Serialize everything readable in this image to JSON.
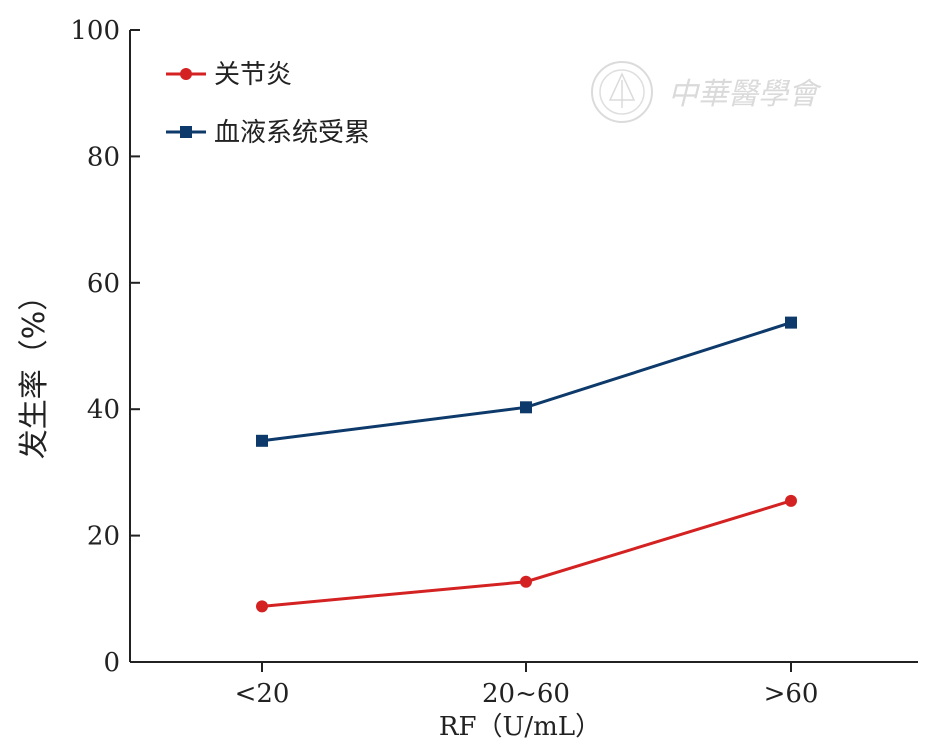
{
  "chart_data": {
    "type": "line",
    "categories": [
      "<20",
      "20~60",
      ">60"
    ],
    "series": [
      {
        "name": "关节炎",
        "values": [
          8.8,
          12.7,
          25.5
        ],
        "color": "#d42222",
        "marker": "circle"
      },
      {
        "name": "血液系统受累",
        "values": [
          35.0,
          40.3,
          53.7
        ],
        "color": "#0d3a6a",
        "marker": "square"
      }
    ],
    "xlabel": "RF（U/mL）",
    "ylabel": "发生率（%）",
    "ylim": [
      0,
      100
    ],
    "yticks": [
      0,
      20,
      40,
      60,
      80,
      100
    ],
    "grid": false,
    "legend_position": "top-left"
  },
  "watermark": {
    "text": "中華醫學會",
    "icon": "medical-association-seal-icon"
  }
}
